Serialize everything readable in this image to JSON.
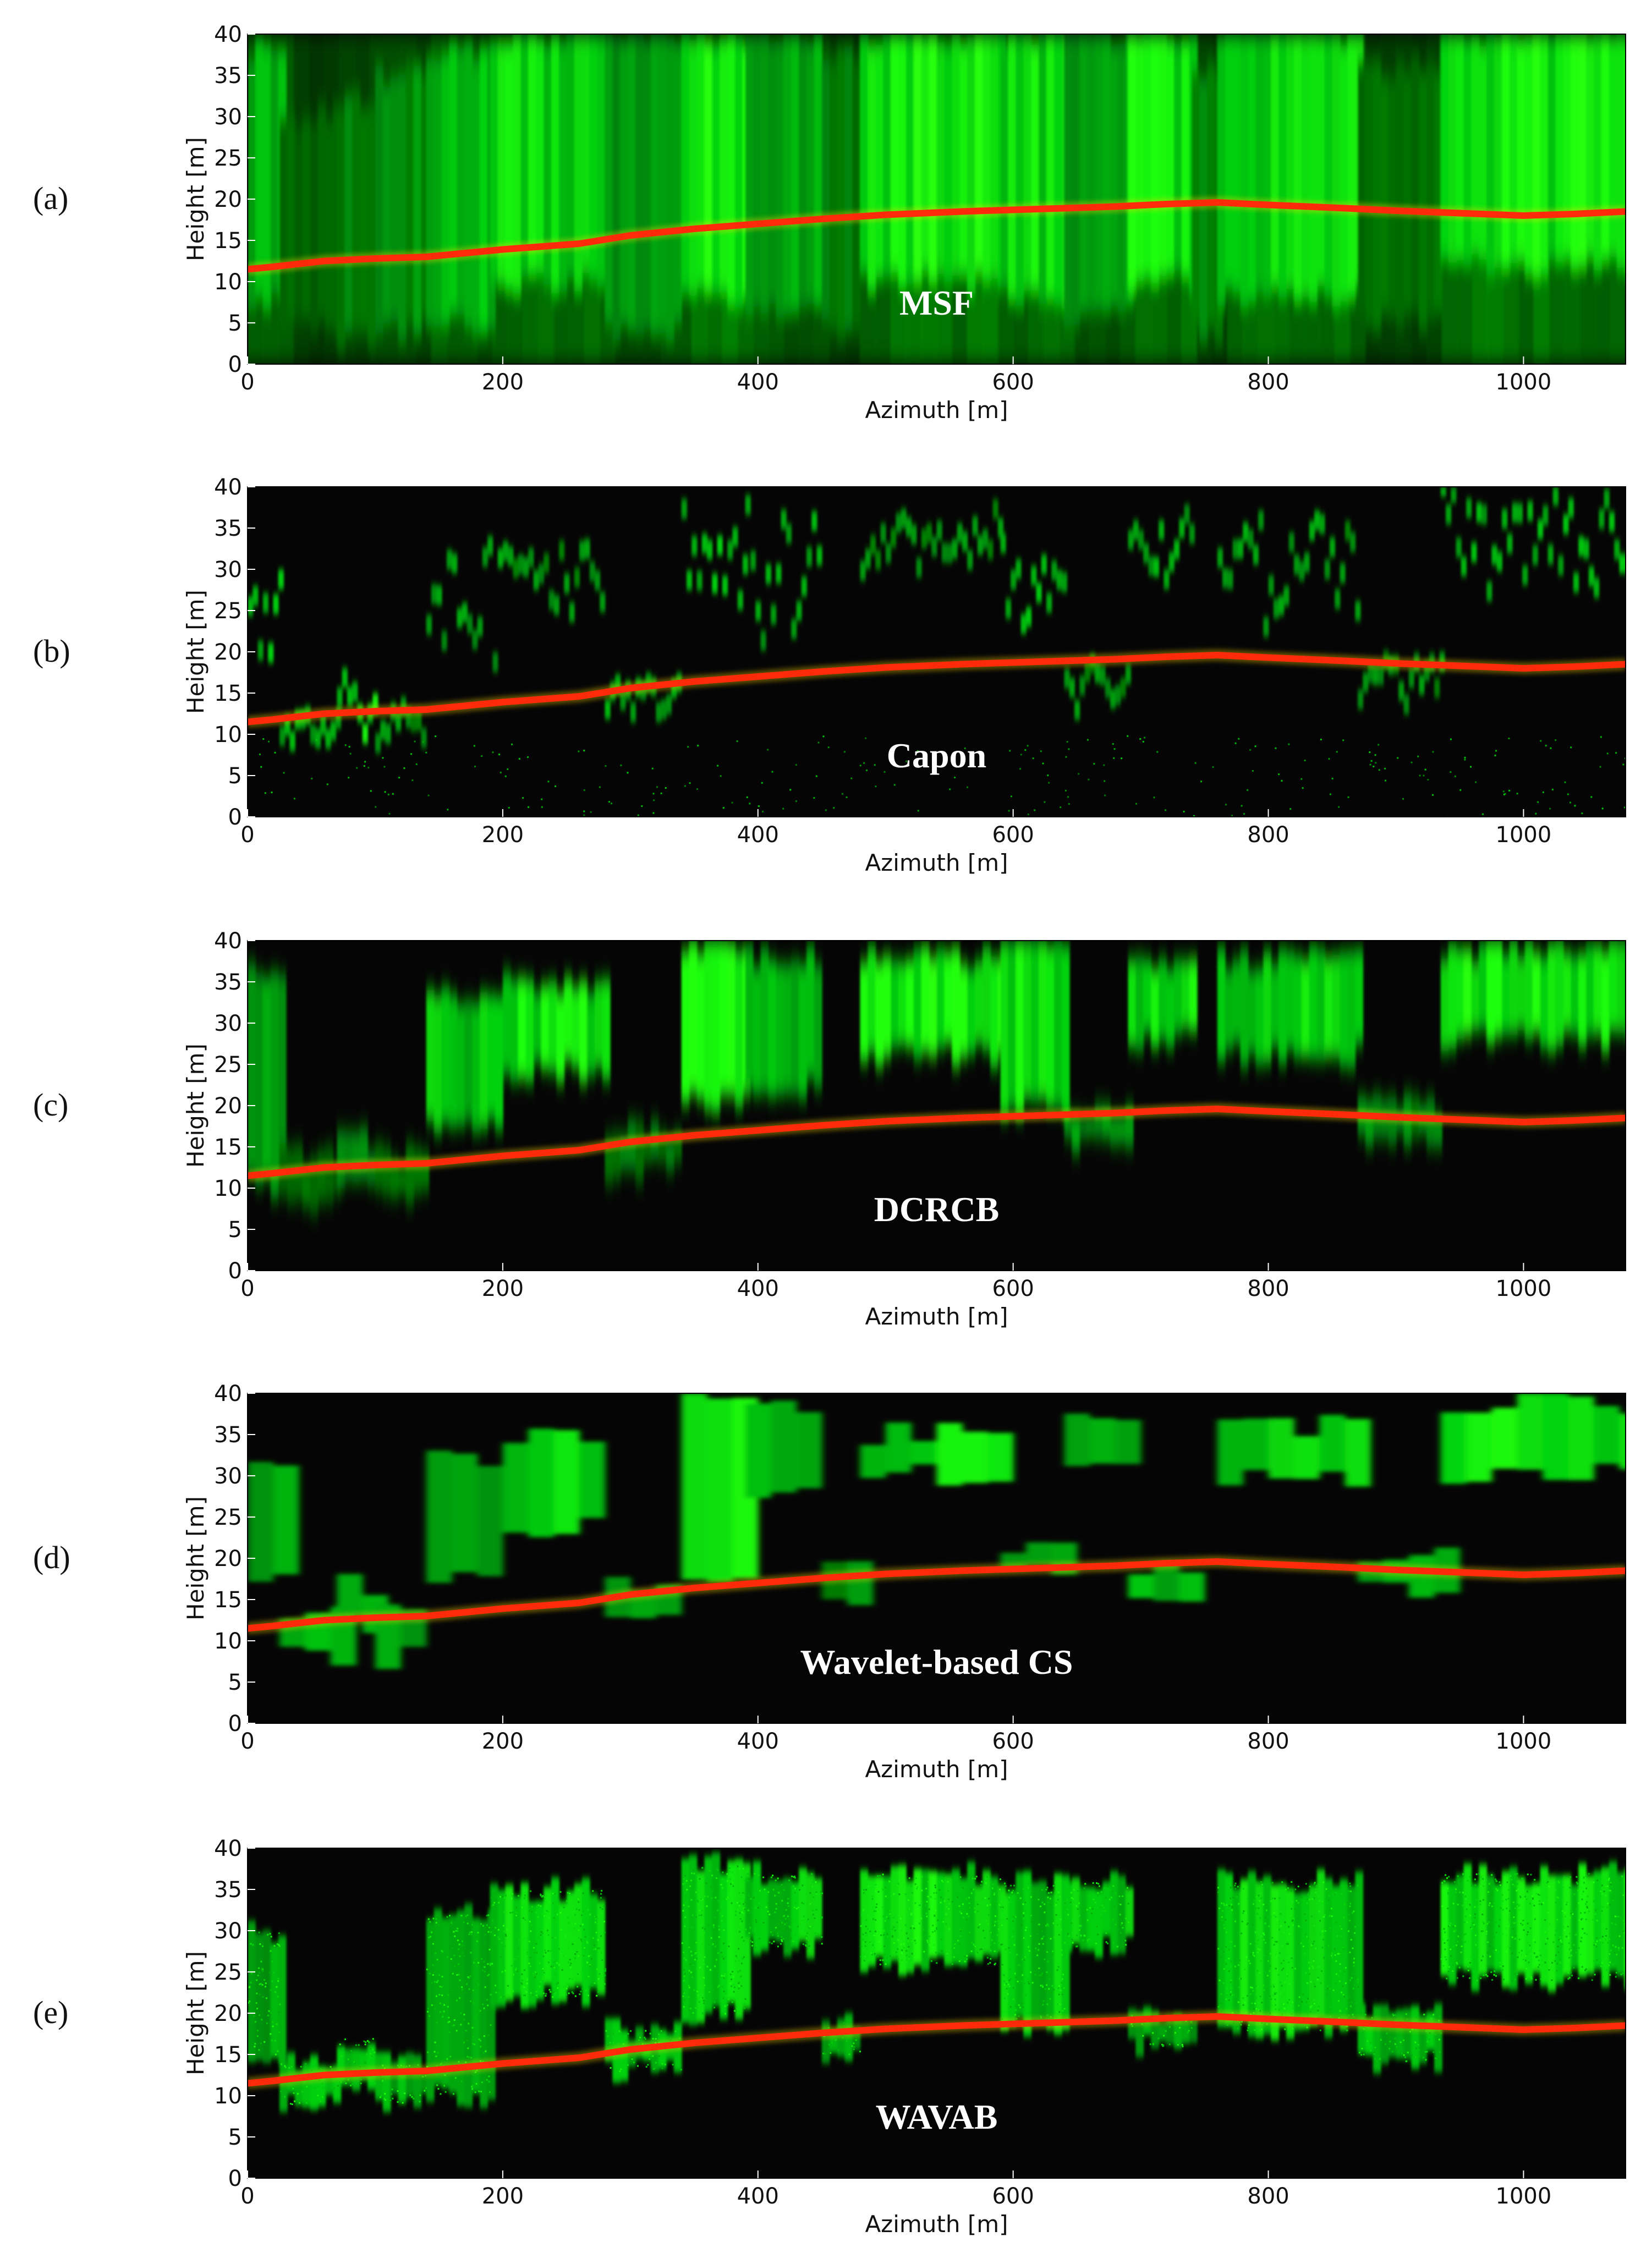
{
  "chart_data": [
    {
      "type": "heatmap",
      "panel_tag": "(a)",
      "method_label": "MSF",
      "xlabel": "Azimuth [m]",
      "ylabel": "Height [m]",
      "xlim": [
        0,
        1080
      ],
      "ylim": [
        0,
        40
      ],
      "xticks": [
        0,
        200,
        400,
        600,
        800,
        1000
      ],
      "yticks": [
        0,
        5,
        10,
        15,
        20,
        25,
        30,
        35,
        40
      ],
      "style": "msf",
      "ground_profile": {
        "x": [
          0,
          20,
          60,
          100,
          140,
          200,
          260,
          300,
          350,
          400,
          450,
          500,
          560,
          620,
          680,
          720,
          760,
          800,
          860,
          900,
          950,
          1000,
          1040,
          1080
        ],
        "y": [
          11.5,
          11.8,
          12.5,
          12.8,
          13.0,
          13.9,
          14.6,
          15.6,
          16.4,
          17.0,
          17.6,
          18.1,
          18.5,
          18.8,
          19.1,
          19.4,
          19.6,
          19.3,
          18.9,
          18.6,
          18.3,
          18.0,
          18.2,
          18.5
        ]
      },
      "canopy_segments": [
        {
          "x0": 0,
          "x1": 25,
          "lo": 8,
          "hi": 38,
          "s": 0.65
        },
        {
          "x0": 25,
          "x1": 70,
          "lo": 4,
          "hi": 30,
          "s": 0.3
        },
        {
          "x0": 70,
          "x1": 100,
          "lo": 3,
          "hi": 32,
          "s": 0.45
        },
        {
          "x0": 100,
          "x1": 140,
          "lo": 4,
          "hi": 35,
          "s": 0.5
        },
        {
          "x0": 140,
          "x1": 190,
          "lo": 5,
          "hi": 38,
          "s": 0.7
        },
        {
          "x0": 190,
          "x1": 280,
          "lo": 10,
          "hi": 40,
          "s": 0.85
        },
        {
          "x0": 280,
          "x1": 340,
          "lo": 4,
          "hi": 40,
          "s": 0.55
        },
        {
          "x0": 340,
          "x1": 390,
          "lo": 8,
          "hi": 40,
          "s": 0.95
        },
        {
          "x0": 390,
          "x1": 450,
          "lo": 6,
          "hi": 40,
          "s": 0.6
        },
        {
          "x0": 450,
          "x1": 480,
          "lo": 4,
          "hi": 38,
          "s": 0.4
        },
        {
          "x0": 480,
          "x1": 590,
          "lo": 10,
          "hi": 40,
          "s": 0.95
        },
        {
          "x0": 590,
          "x1": 640,
          "lo": 8,
          "hi": 40,
          "s": 0.85
        },
        {
          "x0": 640,
          "x1": 690,
          "lo": 6,
          "hi": 40,
          "s": 0.6
        },
        {
          "x0": 690,
          "x1": 740,
          "lo": 10,
          "hi": 40,
          "s": 0.9
        },
        {
          "x0": 740,
          "x1": 760,
          "lo": 4,
          "hi": 36,
          "s": 0.45
        },
        {
          "x0": 760,
          "x1": 870,
          "lo": 8,
          "hi": 40,
          "s": 0.85
        },
        {
          "x0": 870,
          "x1": 935,
          "lo": 5,
          "hi": 36,
          "s": 0.35
        },
        {
          "x0": 935,
          "x1": 1080,
          "lo": 12,
          "hi": 40,
          "s": 0.95
        }
      ]
    },
    {
      "type": "heatmap",
      "panel_tag": "(b)",
      "method_label": "Capon",
      "xlabel": "Azimuth [m]",
      "ylabel": "Height [m]",
      "xlim": [
        0,
        1080
      ],
      "ylim": [
        0,
        40
      ],
      "xticks": [
        0,
        200,
        400,
        600,
        800,
        1000
      ],
      "yticks": [
        0,
        5,
        10,
        15,
        20,
        25,
        30,
        35,
        40
      ],
      "style": "capon",
      "ground_profile": {
        "x": [
          0,
          20,
          60,
          100,
          140,
          200,
          260,
          300,
          350,
          400,
          450,
          500,
          560,
          620,
          680,
          720,
          760,
          800,
          860,
          900,
          950,
          1000,
          1040,
          1080
        ],
        "y": [
          11.5,
          11.8,
          12.5,
          12.8,
          13.0,
          13.9,
          14.6,
          15.6,
          16.4,
          17.0,
          17.6,
          18.1,
          18.5,
          18.8,
          19.1,
          19.4,
          19.6,
          19.3,
          18.9,
          18.6,
          18.3,
          18.0,
          18.2,
          18.5
        ]
      },
      "canopy_segments": [
        {
          "x0": 0,
          "x1": 25,
          "lo": 18,
          "hi": 32,
          "s": 0.7
        },
        {
          "x0": 25,
          "x1": 70,
          "lo": 9,
          "hi": 12,
          "s": 0.6
        },
        {
          "x0": 70,
          "x1": 100,
          "lo": 11,
          "hi": 17,
          "s": 0.8
        },
        {
          "x0": 100,
          "x1": 140,
          "lo": 9,
          "hi": 13,
          "s": 0.5
        },
        {
          "x0": 140,
          "x1": 200,
          "lo": 20,
          "hi": 33,
          "s": 0.55
        },
        {
          "x0": 200,
          "x1": 280,
          "lo": 26,
          "hi": 34,
          "s": 0.5
        },
        {
          "x0": 280,
          "x1": 340,
          "lo": 13,
          "hi": 17,
          "s": 0.6
        },
        {
          "x0": 340,
          "x1": 390,
          "lo": 25,
          "hi": 38,
          "s": 0.7
        },
        {
          "x0": 390,
          "x1": 450,
          "lo": 20,
          "hi": 38,
          "s": 0.6
        },
        {
          "x0": 480,
          "x1": 590,
          "lo": 30,
          "hi": 37,
          "s": 0.5
        },
        {
          "x0": 590,
          "x1": 640,
          "lo": 22,
          "hi": 36,
          "s": 0.7
        },
        {
          "x0": 640,
          "x1": 690,
          "lo": 14,
          "hi": 18,
          "s": 0.5
        },
        {
          "x0": 690,
          "x1": 740,
          "lo": 30,
          "hi": 38,
          "s": 0.6
        },
        {
          "x0": 760,
          "x1": 870,
          "lo": 24,
          "hi": 36,
          "s": 0.55
        },
        {
          "x0": 870,
          "x1": 935,
          "lo": 14,
          "hi": 19,
          "s": 0.5
        },
        {
          "x0": 935,
          "x1": 1080,
          "lo": 28,
          "hi": 39,
          "s": 0.65
        }
      ]
    },
    {
      "type": "heatmap",
      "panel_tag": "(c)",
      "method_label": "DCRCB",
      "xlabel": "Azimuth [m]",
      "ylabel": "Height [m]",
      "xlim": [
        0,
        1080
      ],
      "ylim": [
        0,
        40
      ],
      "xticks": [
        0,
        200,
        400,
        600,
        800,
        1000
      ],
      "yticks": [
        0,
        5,
        10,
        15,
        20,
        25,
        30,
        35,
        40
      ],
      "style": "dcrcb",
      "ground_profile": {
        "x": [
          0,
          20,
          60,
          100,
          140,
          200,
          260,
          300,
          350,
          400,
          450,
          500,
          560,
          620,
          680,
          720,
          760,
          800,
          860,
          900,
          950,
          1000,
          1040,
          1080
        ],
        "y": [
          11.5,
          11.8,
          12.5,
          12.8,
          13.0,
          13.9,
          14.6,
          15.6,
          16.4,
          17.0,
          17.6,
          18.1,
          18.5,
          18.8,
          19.1,
          19.4,
          19.6,
          19.3,
          18.9,
          18.6,
          18.3,
          18.0,
          18.2,
          18.5
        ]
      },
      "canopy_segments": [
        {
          "x0": 0,
          "x1": 25,
          "lo": 10,
          "hi": 36,
          "s": 0.6
        },
        {
          "x0": 25,
          "x1": 70,
          "lo": 8,
          "hi": 14,
          "s": 0.35
        },
        {
          "x0": 70,
          "x1": 100,
          "lo": 10,
          "hi": 16,
          "s": 0.55
        },
        {
          "x0": 100,
          "x1": 140,
          "lo": 9,
          "hi": 14,
          "s": 0.35
        },
        {
          "x0": 140,
          "x1": 200,
          "lo": 18,
          "hi": 33,
          "s": 0.75
        },
        {
          "x0": 200,
          "x1": 280,
          "lo": 24,
          "hi": 35,
          "s": 0.9
        },
        {
          "x0": 280,
          "x1": 340,
          "lo": 12,
          "hi": 17,
          "s": 0.4
        },
        {
          "x0": 340,
          "x1": 390,
          "lo": 20,
          "hi": 40,
          "s": 0.95
        },
        {
          "x0": 390,
          "x1": 450,
          "lo": 22,
          "hi": 38,
          "s": 0.7
        },
        {
          "x0": 480,
          "x1": 590,
          "lo": 26,
          "hi": 38,
          "s": 0.95
        },
        {
          "x0": 590,
          "x1": 640,
          "lo": 20,
          "hi": 40,
          "s": 0.85
        },
        {
          "x0": 640,
          "x1": 690,
          "lo": 15,
          "hi": 19,
          "s": 0.55
        },
        {
          "x0": 690,
          "x1": 740,
          "lo": 28,
          "hi": 38,
          "s": 0.85
        },
        {
          "x0": 760,
          "x1": 870,
          "lo": 26,
          "hi": 38,
          "s": 0.85
        },
        {
          "x0": 870,
          "x1": 935,
          "lo": 16,
          "hi": 20,
          "s": 0.5
        },
        {
          "x0": 935,
          "x1": 1080,
          "lo": 28,
          "hi": 39,
          "s": 0.95
        }
      ]
    },
    {
      "type": "heatmap",
      "panel_tag": "(d)",
      "method_label": "Wavelet-based CS",
      "xlabel": "Azimuth [m]",
      "ylabel": "Height [m]",
      "xlim": [
        0,
        1080
      ],
      "ylim": [
        0,
        40
      ],
      "xticks": [
        0,
        200,
        400,
        600,
        800,
        1000
      ],
      "yticks": [
        0,
        5,
        10,
        15,
        20,
        25,
        30,
        35,
        40
      ],
      "style": "cs",
      "ground_profile": {
        "x": [
          0,
          20,
          60,
          100,
          140,
          200,
          260,
          300,
          350,
          400,
          450,
          500,
          560,
          620,
          680,
          720,
          760,
          800,
          860,
          900,
          950,
          1000,
          1040,
          1080
        ],
        "y": [
          11.5,
          11.8,
          12.5,
          12.8,
          13.0,
          13.9,
          14.6,
          15.6,
          16.4,
          17.0,
          17.6,
          18.1,
          18.5,
          18.8,
          19.1,
          19.4,
          19.6,
          19.3,
          18.9,
          18.6,
          18.3,
          18.0,
          18.2,
          18.5
        ]
      },
      "canopy_segments": [
        {
          "x0": 0,
          "x1": 25,
          "lo": 18,
          "hi": 32,
          "s": 0.6
        },
        {
          "x0": 25,
          "x1": 70,
          "lo": 8,
          "hi": 14,
          "s": 0.7
        },
        {
          "x0": 70,
          "x1": 100,
          "lo": 12,
          "hi": 17,
          "s": 0.75
        },
        {
          "x0": 100,
          "x1": 140,
          "lo": 8,
          "hi": 14,
          "s": 0.6
        },
        {
          "x0": 140,
          "x1": 200,
          "lo": 18,
          "hi": 32,
          "s": 0.65
        },
        {
          "x0": 200,
          "x1": 280,
          "lo": 24,
          "hi": 35,
          "s": 0.8
        },
        {
          "x0": 280,
          "x1": 340,
          "lo": 12,
          "hi": 17,
          "s": 0.6
        },
        {
          "x0": 340,
          "x1": 390,
          "lo": 18,
          "hi": 40,
          "s": 0.9
        },
        {
          "x0": 390,
          "x1": 450,
          "lo": 28,
          "hi": 38,
          "s": 0.65
        },
        {
          "x0": 450,
          "x1": 480,
          "lo": 14,
          "hi": 20,
          "s": 0.5
        },
        {
          "x0": 480,
          "x1": 590,
          "lo": 30,
          "hi": 35,
          "s": 0.85
        },
        {
          "x0": 590,
          "x1": 640,
          "lo": 19,
          "hi": 22,
          "s": 0.6
        },
        {
          "x0": 640,
          "x1": 690,
          "lo": 30,
          "hi": 38,
          "s": 0.7
        },
        {
          "x0": 690,
          "x1": 740,
          "lo": 16,
          "hi": 19,
          "s": 0.7
        },
        {
          "x0": 760,
          "x1": 870,
          "lo": 30,
          "hi": 36,
          "s": 0.75
        },
        {
          "x0": 870,
          "x1": 935,
          "lo": 16,
          "hi": 20,
          "s": 0.6
        },
        {
          "x0": 935,
          "x1": 1080,
          "lo": 30,
          "hi": 39,
          "s": 0.85
        }
      ]
    },
    {
      "type": "heatmap",
      "panel_tag": "(e)",
      "method_label": "WAVAB",
      "xlabel": "Azimuth [m]",
      "ylabel": "Height [m]",
      "xlim": [
        0,
        1080
      ],
      "ylim": [
        0,
        40
      ],
      "xticks": [
        0,
        200,
        400,
        600,
        800,
        1000
      ],
      "yticks": [
        0,
        5,
        10,
        15,
        20,
        25,
        30,
        35,
        40
      ],
      "style": "wavab",
      "ground_profile": {
        "x": [
          0,
          20,
          60,
          100,
          140,
          200,
          260,
          300,
          350,
          400,
          450,
          500,
          560,
          620,
          680,
          720,
          760,
          800,
          860,
          900,
          950,
          1000,
          1040,
          1080
        ],
        "y": [
          11.5,
          11.8,
          12.5,
          12.8,
          13.0,
          13.9,
          14.6,
          15.6,
          16.4,
          17.0,
          17.6,
          18.1,
          18.5,
          18.8,
          19.1,
          19.4,
          19.6,
          19.3,
          18.9,
          18.6,
          18.3,
          18.0,
          18.2,
          18.5
        ]
      },
      "canopy_segments": [
        {
          "x0": 0,
          "x1": 25,
          "lo": 15,
          "hi": 30,
          "s": 0.6
        },
        {
          "x0": 25,
          "x1": 70,
          "lo": 9,
          "hi": 14,
          "s": 0.7
        },
        {
          "x0": 70,
          "x1": 100,
          "lo": 11,
          "hi": 17,
          "s": 0.75
        },
        {
          "x0": 100,
          "x1": 140,
          "lo": 9,
          "hi": 14,
          "s": 0.65
        },
        {
          "x0": 140,
          "x1": 190,
          "lo": 10,
          "hi": 32,
          "s": 0.6
        },
        {
          "x0": 190,
          "x1": 280,
          "lo": 22,
          "hi": 35,
          "s": 0.8
        },
        {
          "x0": 280,
          "x1": 340,
          "lo": 13,
          "hi": 18,
          "s": 0.7
        },
        {
          "x0": 340,
          "x1": 390,
          "lo": 20,
          "hi": 38,
          "s": 0.85
        },
        {
          "x0": 390,
          "x1": 450,
          "lo": 28,
          "hi": 37,
          "s": 0.75
        },
        {
          "x0": 450,
          "x1": 480,
          "lo": 15,
          "hi": 19,
          "s": 0.6
        },
        {
          "x0": 480,
          "x1": 590,
          "lo": 26,
          "hi": 37,
          "s": 0.85
        },
        {
          "x0": 590,
          "x1": 640,
          "lo": 18,
          "hi": 36,
          "s": 0.75
        },
        {
          "x0": 640,
          "x1": 690,
          "lo": 28,
          "hi": 36,
          "s": 0.75
        },
        {
          "x0": 690,
          "x1": 740,
          "lo": 16,
          "hi": 20,
          "s": 0.6
        },
        {
          "x0": 760,
          "x1": 870,
          "lo": 18,
          "hi": 36,
          "s": 0.8
        },
        {
          "x0": 870,
          "x1": 935,
          "lo": 14,
          "hi": 20,
          "s": 0.7
        },
        {
          "x0": 935,
          "x1": 1080,
          "lo": 24,
          "hi": 37,
          "s": 0.85
        }
      ]
    }
  ]
}
